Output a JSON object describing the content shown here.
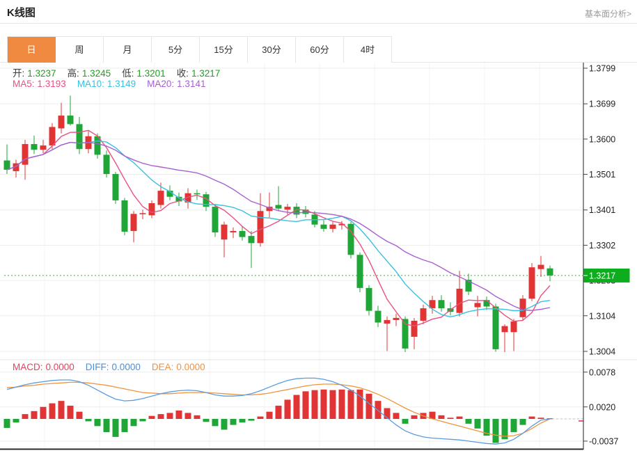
{
  "header": {
    "title": "K线图",
    "link": "基本面分析>"
  },
  "tabs": {
    "items": [
      "日",
      "周",
      "月",
      "5分",
      "15分",
      "30分",
      "60分",
      "4时"
    ],
    "active_index": 0
  },
  "main_legend": {
    "ohlc_items": [
      {
        "label": "开:",
        "value": "1.3237"
      },
      {
        "label": "高:",
        "value": "1.3245"
      },
      {
        "label": "低:",
        "value": "1.3201"
      },
      {
        "label": "收:",
        "value": "1.3217"
      }
    ],
    "ohlc_value_color": "#1fa01f",
    "ma_items": [
      {
        "label": "MA5:",
        "value": "1.3193",
        "color": "#ec4f82"
      },
      {
        "label": "MA10:",
        "value": "1.3149",
        "color": "#38c2e0"
      },
      {
        "label": "MA20:",
        "value": "1.3141",
        "color": "#a95fd0"
      }
    ]
  },
  "macd_legend": {
    "items": [
      {
        "label": "MACD:",
        "value": "0.0000",
        "color": "#e8415a"
      },
      {
        "label": "DIFF:",
        "value": "0.0000",
        "color": "#4a90d9"
      },
      {
        "label": "DEA:",
        "value": "0.0000",
        "color": "#f2913d"
      }
    ]
  },
  "colors": {
    "up_candle": "#e13535",
    "down_candle": "#1fa637",
    "ma5": "#ec4f82",
    "ma10": "#38c2e0",
    "ma20": "#a95fd0",
    "diff_line": "#5a9ce0",
    "dea_line": "#f0943c",
    "hist_up": "#e13535",
    "hist_down": "#1fa637",
    "grid": "#ededed",
    "vgrid": "#f3f3f3",
    "axis": "#444444",
    "axis_label": "#222222",
    "price_badge_bg": "#0ead1e",
    "price_badge_text": "#ffffff",
    "price_dotted_line": "#2db92d",
    "zero_dashed_line": "#a9c7e8",
    "macd_marker": "#f05a7a",
    "active_tab_bg": "#ef8a40",
    "bottom_axis": "#2b2b2b",
    "separator": "#e3e3e3"
  },
  "chart_data": [
    {
      "type": "candlestick",
      "title": "K线图",
      "period_selected": "日",
      "ohlc_legend": {
        "open": 1.3237,
        "high": 1.3245,
        "low": 1.3201,
        "close": 1.3217
      },
      "ma_legend": {
        "MA5": 1.3193,
        "MA10": 1.3149,
        "MA20": 1.3141
      },
      "current_price": 1.3217,
      "y_axis_labels": [
        1.3799,
        1.3699,
        1.36,
        1.3501,
        1.3401,
        1.3302,
        1.3203,
        1.3104,
        1.3004
      ],
      "ylim": [
        1.299,
        1.382
      ],
      "grid": true,
      "legend_position": "top-left",
      "candles_ohlc": [
        [
          1.354,
          1.3585,
          1.3502,
          1.3514
        ],
        [
          1.351,
          1.3542,
          1.3492,
          1.3532
        ],
        [
          1.3528,
          1.3598,
          1.3486,
          1.3586
        ],
        [
          1.3586,
          1.361,
          1.3558,
          1.357
        ],
        [
          1.357,
          1.3598,
          1.356,
          1.3582
        ],
        [
          1.3582,
          1.3645,
          1.3572,
          1.3634
        ],
        [
          1.363,
          1.3702,
          1.3616,
          1.3666
        ],
        [
          1.3666,
          1.3722,
          1.3638,
          1.3642
        ],
        [
          1.3642,
          1.3662,
          1.3558,
          1.3572
        ],
        [
          1.3572,
          1.3622,
          1.356,
          1.3608
        ],
        [
          1.3608,
          1.3616,
          1.3545,
          1.3556
        ],
        [
          1.3556,
          1.3568,
          1.3492,
          1.3502
        ],
        [
          1.3502,
          1.3508,
          1.3418,
          1.3428
        ],
        [
          1.3428,
          1.3435,
          1.333,
          1.334
        ],
        [
          1.3342,
          1.3398,
          1.331,
          1.339
        ],
        [
          1.339,
          1.3402,
          1.3375,
          1.3392
        ],
        [
          1.3386,
          1.3428,
          1.3378,
          1.342
        ],
        [
          1.3415,
          1.3478,
          1.3405,
          1.3455
        ],
        [
          1.3455,
          1.347,
          1.3428,
          1.3438
        ],
        [
          1.3438,
          1.345,
          1.3412,
          1.3425
        ],
        [
          1.3422,
          1.3462,
          1.3405,
          1.3448
        ],
        [
          1.3448,
          1.3458,
          1.343,
          1.3445
        ],
        [
          1.3445,
          1.3452,
          1.3398,
          1.341
        ],
        [
          1.341,
          1.3418,
          1.3325,
          1.3338
        ],
        [
          1.3318,
          1.3368,
          1.3268,
          1.336
        ],
        [
          1.3338,
          1.3352,
          1.3322,
          1.3342
        ],
        [
          1.3342,
          1.3355,
          1.3315,
          1.3325
        ],
        [
          1.3328,
          1.3342,
          1.3238,
          1.3308
        ],
        [
          1.3308,
          1.3448,
          1.3298,
          1.3398
        ],
        [
          1.3398,
          1.345,
          1.338,
          1.341
        ],
        [
          1.3415,
          1.3468,
          1.3398,
          1.3405
        ],
        [
          1.3402,
          1.3418,
          1.3388,
          1.341
        ],
        [
          1.341,
          1.342,
          1.3378,
          1.3388
        ],
        [
          1.3402,
          1.3412,
          1.338,
          1.339
        ],
        [
          1.3388,
          1.3398,
          1.3352,
          1.336
        ],
        [
          1.336,
          1.3372,
          1.334,
          1.3348
        ],
        [
          1.3348,
          1.3368,
          1.3338,
          1.336
        ],
        [
          1.3358,
          1.337,
          1.3346,
          1.3362
        ],
        [
          1.3362,
          1.3368,
          1.3265,
          1.3275
        ],
        [
          1.3275,
          1.3282,
          1.317,
          1.3182
        ],
        [
          1.3182,
          1.319,
          1.3105,
          1.3118
        ],
        [
          1.3118,
          1.3132,
          1.3072,
          1.3085
        ],
        [
          1.3082,
          1.3102,
          1.3005,
          1.3092
        ],
        [
          1.3092,
          1.311,
          1.3075,
          1.3098
        ],
        [
          1.3095,
          1.3102,
          1.3002,
          1.3012
        ],
        [
          1.3045,
          1.3098,
          1.301,
          1.309
        ],
        [
          1.309,
          1.3135,
          1.308,
          1.3125
        ],
        [
          1.3125,
          1.316,
          1.311,
          1.3148
        ],
        [
          1.3148,
          1.3162,
          1.3115,
          1.3125
        ],
        [
          1.3125,
          1.3142,
          1.3105,
          1.3115
        ],
        [
          1.3112,
          1.323,
          1.3102,
          1.318
        ],
        [
          1.3205,
          1.3222,
          1.3162,
          1.3172
        ],
        [
          1.3128,
          1.316,
          1.3102,
          1.314
        ],
        [
          1.3148,
          1.3158,
          1.312,
          1.313
        ],
        [
          1.313,
          1.3138,
          1.3003,
          1.301
        ],
        [
          1.3058,
          1.308,
          1.3002,
          1.3075
        ],
        [
          1.3058,
          1.3095,
          1.3005,
          1.3088
        ],
        [
          1.31,
          1.3162,
          1.309,
          1.3152
        ],
        [
          1.3152,
          1.3252,
          1.3145,
          1.324
        ],
        [
          1.3235,
          1.3272,
          1.3213,
          1.3247
        ],
        [
          1.3237,
          1.3245,
          1.3201,
          1.3217
        ]
      ]
    },
    {
      "type": "bar",
      "subtype": "macd",
      "y_axis_labels": [
        0.0078,
        0.002,
        -0.0037
      ],
      "macd_values": {
        "MACD": 0.0,
        "DIFF": 0.0,
        "DEA": 0.0
      },
      "histogram": [
        -0.0015,
        -0.0006,
        0.0008,
        0.0013,
        0.002,
        0.0026,
        0.003,
        0.0022,
        0.0012,
        -0.0004,
        -0.0012,
        -0.0022,
        -0.003,
        -0.0022,
        -0.0012,
        -0.0004,
        0.0005,
        0.0008,
        0.001,
        0.0014,
        0.001,
        0.0006,
        -0.0005,
        -0.0012,
        -0.0018,
        -0.001,
        -0.0006,
        -0.0003,
        0.0004,
        0.0012,
        0.0022,
        0.0032,
        0.004,
        0.0046,
        0.0048,
        0.0049,
        0.0048,
        0.0049,
        0.0048,
        0.0049,
        0.0042,
        0.003,
        0.0018,
        0.001,
        -0.0008,
        0.0006,
        0.001,
        0.0012,
        0.0006,
        0.0002,
        0.0004,
        -0.0008,
        -0.0016,
        -0.0028,
        -0.004,
        -0.0034,
        -0.0022,
        -0.001,
        0.0004,
        0.0002,
        0.0001
      ],
      "diff": [
        0.0049,
        0.0053,
        0.0057,
        0.006,
        0.0062,
        0.0064,
        0.0065,
        0.0065,
        0.0062,
        0.0056,
        0.0048,
        0.004,
        0.0033,
        0.003,
        0.0031,
        0.0034,
        0.0038,
        0.0042,
        0.0045,
        0.0047,
        0.0048,
        0.0047,
        0.0044,
        0.004,
        0.0038,
        0.0038,
        0.0039,
        0.0042,
        0.0047,
        0.0053,
        0.0059,
        0.0064,
        0.0067,
        0.0068,
        0.0068,
        0.0066,
        0.0062,
        0.0056,
        0.0048,
        0.0038,
        0.0026,
        0.0014,
        0.0002,
        -0.001,
        -0.002,
        -0.0026,
        -0.003,
        -0.0032,
        -0.0033,
        -0.0034,
        -0.0035,
        -0.0037,
        -0.0039,
        -0.0041,
        -0.0042,
        -0.004,
        -0.0034,
        -0.0024,
        -0.0012,
        -0.0002,
        0.0
      ],
      "dea": [
        0.0052,
        0.0053,
        0.0055,
        0.0056,
        0.0058,
        0.0059,
        0.006,
        0.0061,
        0.0061,
        0.006,
        0.0058,
        0.0056,
        0.0053,
        0.005,
        0.0047,
        0.0044,
        0.0043,
        0.0042,
        0.0042,
        0.0043,
        0.0044,
        0.0044,
        0.0044,
        0.0043,
        0.0042,
        0.0041,
        0.004,
        0.004,
        0.0041,
        0.0043,
        0.0046,
        0.0049,
        0.0052,
        0.0055,
        0.0057,
        0.0058,
        0.0058,
        0.0057,
        0.0055,
        0.0052,
        0.0047,
        0.0041,
        0.0034,
        0.0026,
        0.0018,
        0.0011,
        0.0005,
        0.0,
        -0.0004,
        -0.0008,
        -0.0012,
        -0.0016,
        -0.002,
        -0.0024,
        -0.0027,
        -0.0029,
        -0.0028,
        -0.0024,
        -0.0016,
        -0.0007,
        0.0
      ]
    }
  ]
}
